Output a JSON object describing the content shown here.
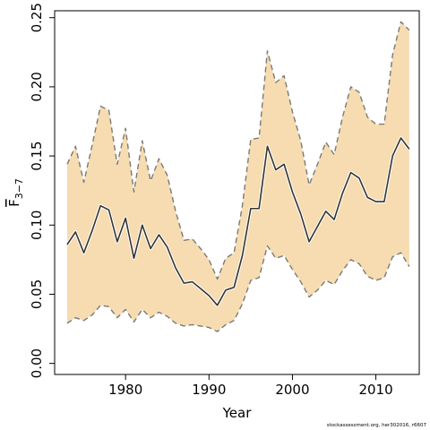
{
  "chart_data": {
    "type": "line",
    "title": "",
    "xlabel": "Year",
    "ylabel_main": "F",
    "ylabel_sub": "3−7",
    "xlim": [
      1971.5,
      2015.2
    ],
    "ylim": [
      -0.008,
      0.255
    ],
    "x_ticks": [
      1980,
      1990,
      2000,
      2010
    ],
    "x_tick_labels": [
      "1980",
      "1990",
      "2000",
      "2010"
    ],
    "y_ticks": [
      0.0,
      0.05,
      0.1,
      0.15,
      0.2,
      0.25
    ],
    "y_tick_labels": [
      "0.00",
      "0.05",
      "0.10",
      "0.15",
      "0.20",
      "0.25"
    ],
    "grid": false,
    "x": [
      1973,
      1974,
      1975,
      1976,
      1977,
      1978,
      1979,
      1980,
      1981,
      1982,
      1983,
      1984,
      1985,
      1986,
      1987,
      1988,
      1989,
      1990,
      1991,
      1992,
      1993,
      1994,
      1995,
      1996,
      1997,
      1998,
      1999,
      2000,
      2001,
      2002,
      2003,
      2004,
      2005,
      2006,
      2007,
      2008,
      2009,
      2010,
      2011,
      2012,
      2013,
      2014
    ],
    "series": [
      {
        "values": [
          0.086,
          0.095,
          0.08,
          0.096,
          0.114,
          0.111,
          0.088,
          0.105,
          0.076,
          0.1,
          0.083,
          0.093,
          0.084,
          0.069,
          0.058,
          0.059,
          0.054,
          0.049,
          0.042,
          0.053,
          0.055,
          0.078,
          0.112,
          0.112,
          0.157,
          0.14,
          0.144,
          0.124,
          0.108,
          0.088,
          0.099,
          0.11,
          0.104,
          0.123,
          0.138,
          0.134,
          0.12,
          0.117,
          0.117,
          0.15,
          0.163,
          0.155
        ],
        "color": "#333333"
      }
    ],
    "band": {
      "upper": [
        0.144,
        0.157,
        0.131,
        0.158,
        0.186,
        0.183,
        0.144,
        0.17,
        0.124,
        0.161,
        0.132,
        0.148,
        0.136,
        0.11,
        0.089,
        0.09,
        0.083,
        0.075,
        0.061,
        0.076,
        0.08,
        0.114,
        0.162,
        0.163,
        0.226,
        0.203,
        0.208,
        0.182,
        0.161,
        0.129,
        0.144,
        0.16,
        0.151,
        0.178,
        0.2,
        0.196,
        0.178,
        0.173,
        0.173,
        0.223,
        0.247,
        0.241
      ],
      "lower": [
        0.029,
        0.033,
        0.031,
        0.035,
        0.042,
        0.041,
        0.033,
        0.039,
        0.03,
        0.039,
        0.033,
        0.037,
        0.034,
        0.029,
        0.027,
        0.028,
        0.027,
        0.026,
        0.023,
        0.028,
        0.031,
        0.043,
        0.06,
        0.062,
        0.085,
        0.076,
        0.078,
        0.068,
        0.059,
        0.048,
        0.053,
        0.06,
        0.057,
        0.067,
        0.075,
        0.072,
        0.063,
        0.06,
        0.062,
        0.077,
        0.08,
        0.07
      ],
      "fill_color": "#f6dcb0",
      "edge_color": "#7a7a7a"
    }
  },
  "footnote": "stockassessment.org, her302016, r6607"
}
